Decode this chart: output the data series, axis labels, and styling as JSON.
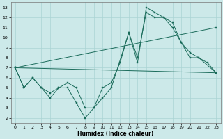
{
  "xlabel": "Humidex (Indice chaleur)",
  "xlim": [
    -0.5,
    23.5
  ],
  "ylim": [
    1.5,
    13.5
  ],
  "xticks": [
    0,
    1,
    2,
    3,
    4,
    5,
    6,
    7,
    8,
    9,
    10,
    11,
    12,
    13,
    14,
    15,
    16,
    17,
    18,
    19,
    20,
    21,
    22,
    23
  ],
  "yticks": [
    2,
    3,
    4,
    5,
    6,
    7,
    8,
    9,
    10,
    11,
    12,
    13
  ],
  "background_color": "#cce9e9",
  "grid_color": "#aad4d4",
  "line_color": "#1a6b5a",
  "line1_x": [
    0,
    1,
    2,
    3,
    4,
    5,
    6,
    7,
    8,
    9,
    10,
    11,
    13,
    14,
    15,
    16,
    17,
    18,
    19,
    20,
    21,
    23
  ],
  "line1_y": [
    7,
    5,
    6,
    5,
    4,
    5,
    5,
    3.5,
    2,
    3,
    4,
    5,
    10.5,
    7.5,
    13,
    12.5,
    12,
    11.5,
    9.5,
    8.5,
    8,
    6.5
  ],
  "line2_x": [
    0,
    1,
    2,
    3,
    4,
    5,
    6,
    7,
    8,
    9,
    10,
    11,
    12,
    13,
    14,
    15,
    16,
    17,
    18,
    19,
    20,
    21,
    22,
    23
  ],
  "line2_y": [
    7,
    5,
    6,
    5,
    4.5,
    5,
    5.5,
    5,
    3,
    3,
    5,
    5.5,
    7.5,
    10.5,
    8,
    12.5,
    12,
    12,
    11,
    9.5,
    8,
    8,
    7.5,
    6.5
  ],
  "line3_x": [
    0,
    23
  ],
  "line3_y": [
    7,
    6.5
  ],
  "line4_x": [
    0,
    23
  ],
  "line4_y": [
    7,
    11.0
  ]
}
